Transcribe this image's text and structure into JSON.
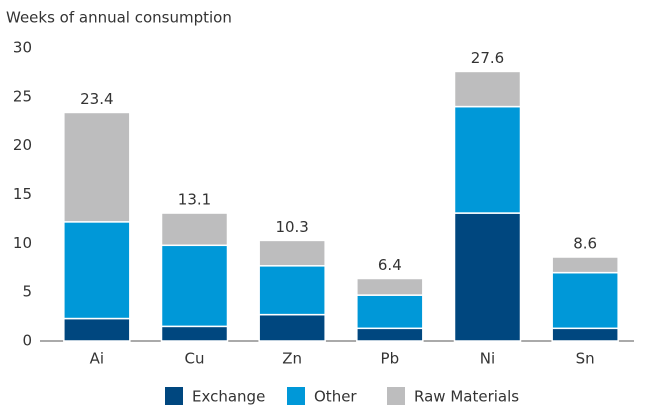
{
  "chart_data": {
    "type": "stacked-bar",
    "y_label": "Weeks of annual consumption",
    "categories": [
      "Ai",
      "Cu",
      "Zn",
      "Pb",
      "Ni",
      "Sn"
    ],
    "series": [
      {
        "name": "Exchange",
        "color": "#00477f",
        "values": [
          2.3,
          1.5,
          2.7,
          1.3,
          13.1,
          1.3
        ]
      },
      {
        "name": "Other",
        "color": "#0098d8",
        "values": [
          9.9,
          8.3,
          5.0,
          3.4,
          10.9,
          5.7
        ]
      },
      {
        "name": "Raw Materials",
        "color": "#bdbdbe",
        "values": [
          11.2,
          3.3,
          2.6,
          1.7,
          3.6,
          1.6
        ]
      }
    ],
    "totals": [
      23.4,
      13.1,
      10.3,
      6.4,
      27.6,
      8.6
    ],
    "ylim": [
      0,
      30
    ],
    "yticks": [
      0,
      5,
      10,
      15,
      20,
      25,
      30
    ],
    "grid": false,
    "legend": "bottom"
  }
}
